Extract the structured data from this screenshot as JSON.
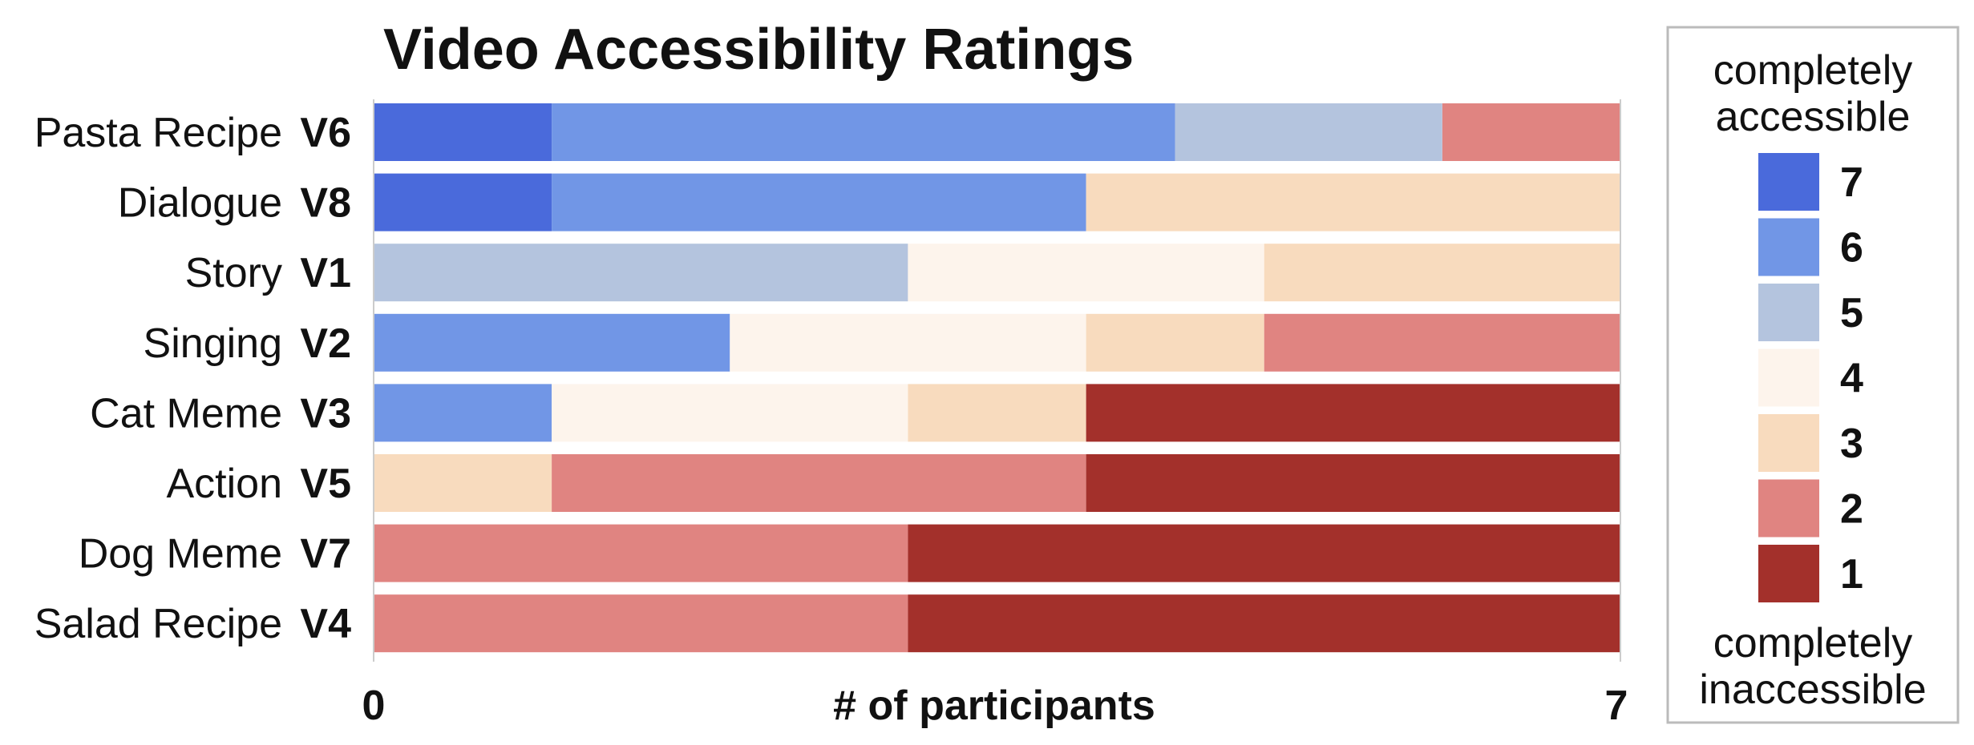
{
  "chart_data": {
    "type": "bar",
    "orientation": "horizontal",
    "stacked": true,
    "title": "Video Accessibility Ratings",
    "xlabel": "# of participants",
    "xlim": [
      0,
      7
    ],
    "xticks": [
      "0",
      "7"
    ],
    "categories": [
      {
        "name": "Pasta Recipe",
        "code": "V6"
      },
      {
        "name": "Dialogue",
        "code": "V8"
      },
      {
        "name": "Story",
        "code": "V1"
      },
      {
        "name": "Singing",
        "code": "V2"
      },
      {
        "name": "Cat Meme",
        "code": "V3"
      },
      {
        "name": "Action",
        "code": "V5"
      },
      {
        "name": "Dog Meme",
        "code": "V7"
      },
      {
        "name": "Salad Recipe",
        "code": "V4"
      }
    ],
    "series": [
      {
        "name": "7",
        "color": "#4a6adb",
        "values": [
          1,
          1,
          0,
          0,
          0,
          0,
          0,
          0
        ]
      },
      {
        "name": "6",
        "color": "#7196e6",
        "values": [
          3.5,
          3,
          0,
          2,
          1,
          0,
          0,
          0
        ]
      },
      {
        "name": "5",
        "color": "#b4c4de",
        "values": [
          1.5,
          0,
          3,
          0,
          0,
          0,
          0,
          0
        ]
      },
      {
        "name": "4",
        "color": "#fdf4ec",
        "values": [
          0,
          0,
          2,
          2,
          2,
          0,
          0,
          0
        ]
      },
      {
        "name": "3",
        "color": "#f8dbbe",
        "values": [
          0,
          3,
          2,
          1,
          1,
          1,
          0,
          0
        ]
      },
      {
        "name": "2",
        "color": "#e08481",
        "values": [
          1,
          0,
          0,
          2,
          0,
          3,
          3,
          3
        ]
      },
      {
        "name": "1",
        "color": "#a3302b",
        "values": [
          0,
          0,
          0,
          0,
          3,
          3,
          4,
          4
        ]
      }
    ],
    "legend": {
      "position": "right",
      "top_label": "completely accessible",
      "top_lines": [
        "completely",
        "accessible"
      ],
      "bottom_label": "completely inaccessible",
      "bottom_lines": [
        "completely",
        "inaccessible"
      ],
      "order": [
        "7",
        "6",
        "5",
        "4",
        "3",
        "2",
        "1"
      ]
    }
  }
}
